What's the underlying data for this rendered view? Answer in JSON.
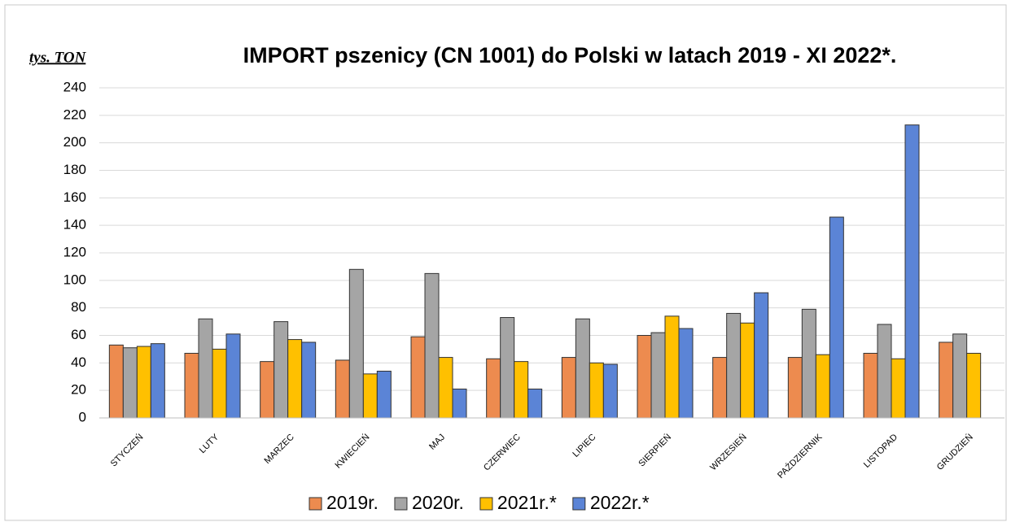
{
  "chart_data": {
    "type": "bar",
    "title": "IMPORT pszenicy (CN 1001) do Polski w latach 2019 - XI 2022*.",
    "y_label": "tys. TON",
    "categories": [
      "STYCZEŃ",
      "LUTY",
      "MARZEC",
      "KWIECIEŃ",
      "MAJ",
      "CZERWIEC",
      "LIPIEC",
      "SIERPIEŃ",
      "WRZESIEŃ",
      "PAŹDZIERNIK",
      "LISTOPAD",
      "GRUDZIEŃ"
    ],
    "series": [
      {
        "name": "2019r.",
        "color": "#ed8b4f",
        "values": [
          53,
          47,
          41,
          42,
          59,
          43,
          44,
          60,
          44,
          44,
          47,
          55
        ]
      },
      {
        "name": "2020r.",
        "color": "#a5a5a5",
        "values": [
          51,
          72,
          70,
          108,
          105,
          73,
          72,
          62,
          76,
          79,
          68,
          61
        ]
      },
      {
        "name": "2021r.*",
        "color": "#ffc000",
        "values": [
          52,
          50,
          57,
          32,
          44,
          41,
          40,
          74,
          69,
          46,
          43,
          47
        ]
      },
      {
        "name": "2022r.*",
        "color": "#5b84d6",
        "values": [
          54,
          61,
          55,
          34,
          21,
          21,
          39,
          65,
          91,
          146,
          213,
          null
        ]
      }
    ],
    "ylim": [
      0,
      240
    ],
    "yticks": [
      0,
      20,
      40,
      60,
      80,
      100,
      120,
      140,
      160,
      180,
      200,
      220,
      240
    ],
    "grid": true
  }
}
